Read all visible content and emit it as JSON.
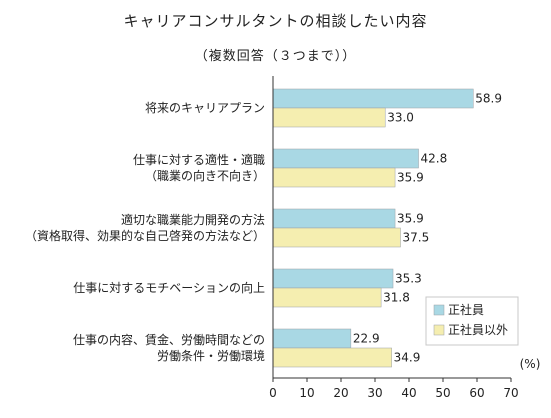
{
  "chart_data": {
    "type": "bar",
    "orientation": "horizontal",
    "title": "キャリアコンサルタントの相談したい内容",
    "subtitle": "（複数回答（３つまで））",
    "unit_label": "(%)",
    "categories": [
      [
        "将来のキャリアプラン"
      ],
      [
        "仕事に対する適性・適職",
        "（職業の向き不向き）"
      ],
      [
        "適切な職業能力開発の方法",
        "（資格取得、効果的な自己啓発の方法など）"
      ],
      [
        "仕事に対するモチベーションの向上"
      ],
      [
        "仕事の内容、賃金、労働時間などの",
        "労働条件・労働環境"
      ]
    ],
    "series": [
      {
        "name": "正社員",
        "color": "#a9d8e4",
        "values": [
          58.9,
          42.8,
          35.9,
          35.3,
          22.9
        ]
      },
      {
        "name": "正社員以外",
        "color": "#f5eeb0",
        "values": [
          33.0,
          35.9,
          37.5,
          31.8,
          34.9
        ]
      }
    ],
    "xlim": [
      0,
      70
    ],
    "xticks": [
      0,
      10,
      20,
      30,
      40,
      50,
      60,
      70
    ],
    "grid": false,
    "legend_position": "bottom-right"
  }
}
